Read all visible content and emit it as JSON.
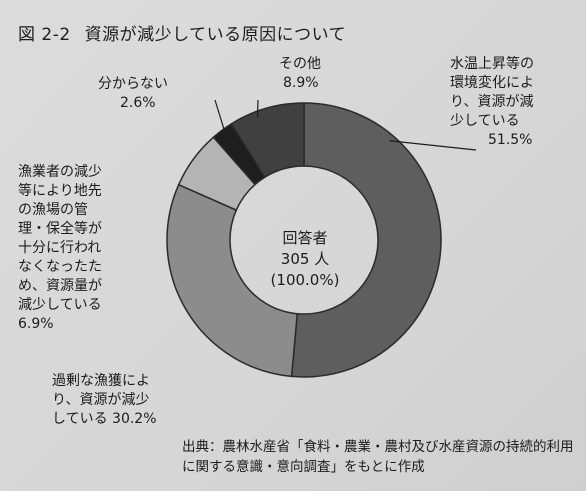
{
  "title": {
    "fig": "図 2-2",
    "text": "資源が減少している原因について"
  },
  "center": {
    "line1": "回答者",
    "line2": "305 人",
    "line3": "(100.0%)"
  },
  "chart_data": {
    "type": "pie",
    "donut": true,
    "slices": [
      {
        "label_lines": [
          "水温上昇等の",
          "環境変化によ",
          "り、資源が減",
          "少している"
        ],
        "value_text": "51.5%",
        "value": 51.5,
        "color": "#5e5e5e"
      },
      {
        "label_lines": [
          "過剰な漁獲によ",
          "り、資源が減少",
          "している"
        ],
        "value_text": "30.2%",
        "value": 30.2,
        "color": "#8c8c8c"
      },
      {
        "label_lines": [
          "漁業者の減少",
          "等により地先",
          "の漁場の管",
          "理・保全等が",
          "十分に行われ",
          "なくなったた",
          "め、資源量が",
          "減少している"
        ],
        "value_text": "6.9%",
        "value": 6.9,
        "color": "#b4b4b4"
      },
      {
        "label_lines": [
          "分からない"
        ],
        "value_text": "2.6%",
        "value": 2.6,
        "color": "#1e1e1e"
      },
      {
        "label_lines": [
          "その他"
        ],
        "value_text": "8.9%",
        "value": 8.9,
        "color": "#404040"
      }
    ]
  },
  "source": {
    "line1": "出典：農林水産省「食料・農業・農村及び水産資源の持続的利用",
    "line2": "に関する意識・意向調査」をもとに作成"
  }
}
